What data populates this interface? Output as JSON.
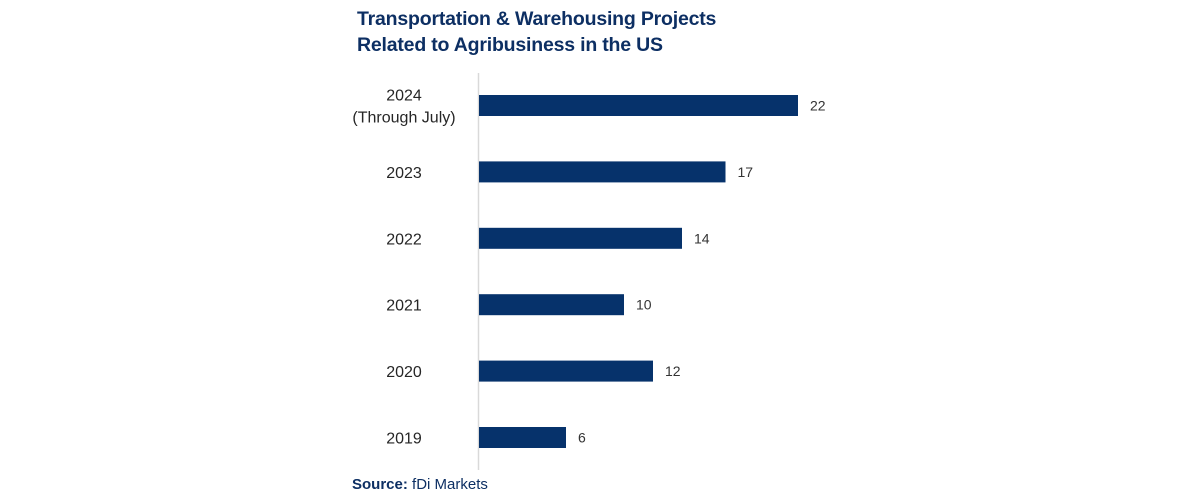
{
  "chart_data": {
    "type": "bar",
    "orientation": "horizontal",
    "title": "Transportation & Warehousing Projects Related to Agribusiness in the US",
    "title_lines": [
      "Transportation & Warehousing Projects",
      "Related to Agribusiness in the US"
    ],
    "categories": [
      [
        "2024",
        "(Through July)"
      ],
      [
        "2023"
      ],
      [
        "2022"
      ],
      [
        "2021"
      ],
      [
        "2020"
      ],
      [
        "2019"
      ]
    ],
    "values": [
      22,
      17,
      14,
      10,
      12,
      6
    ],
    "xlim": [
      0,
      22
    ],
    "grid": false,
    "data_labels": true,
    "bar_color": "#06326b",
    "title_color": "#0d2f63"
  },
  "source": {
    "label": "Source:",
    "text": " fDi Markets"
  }
}
